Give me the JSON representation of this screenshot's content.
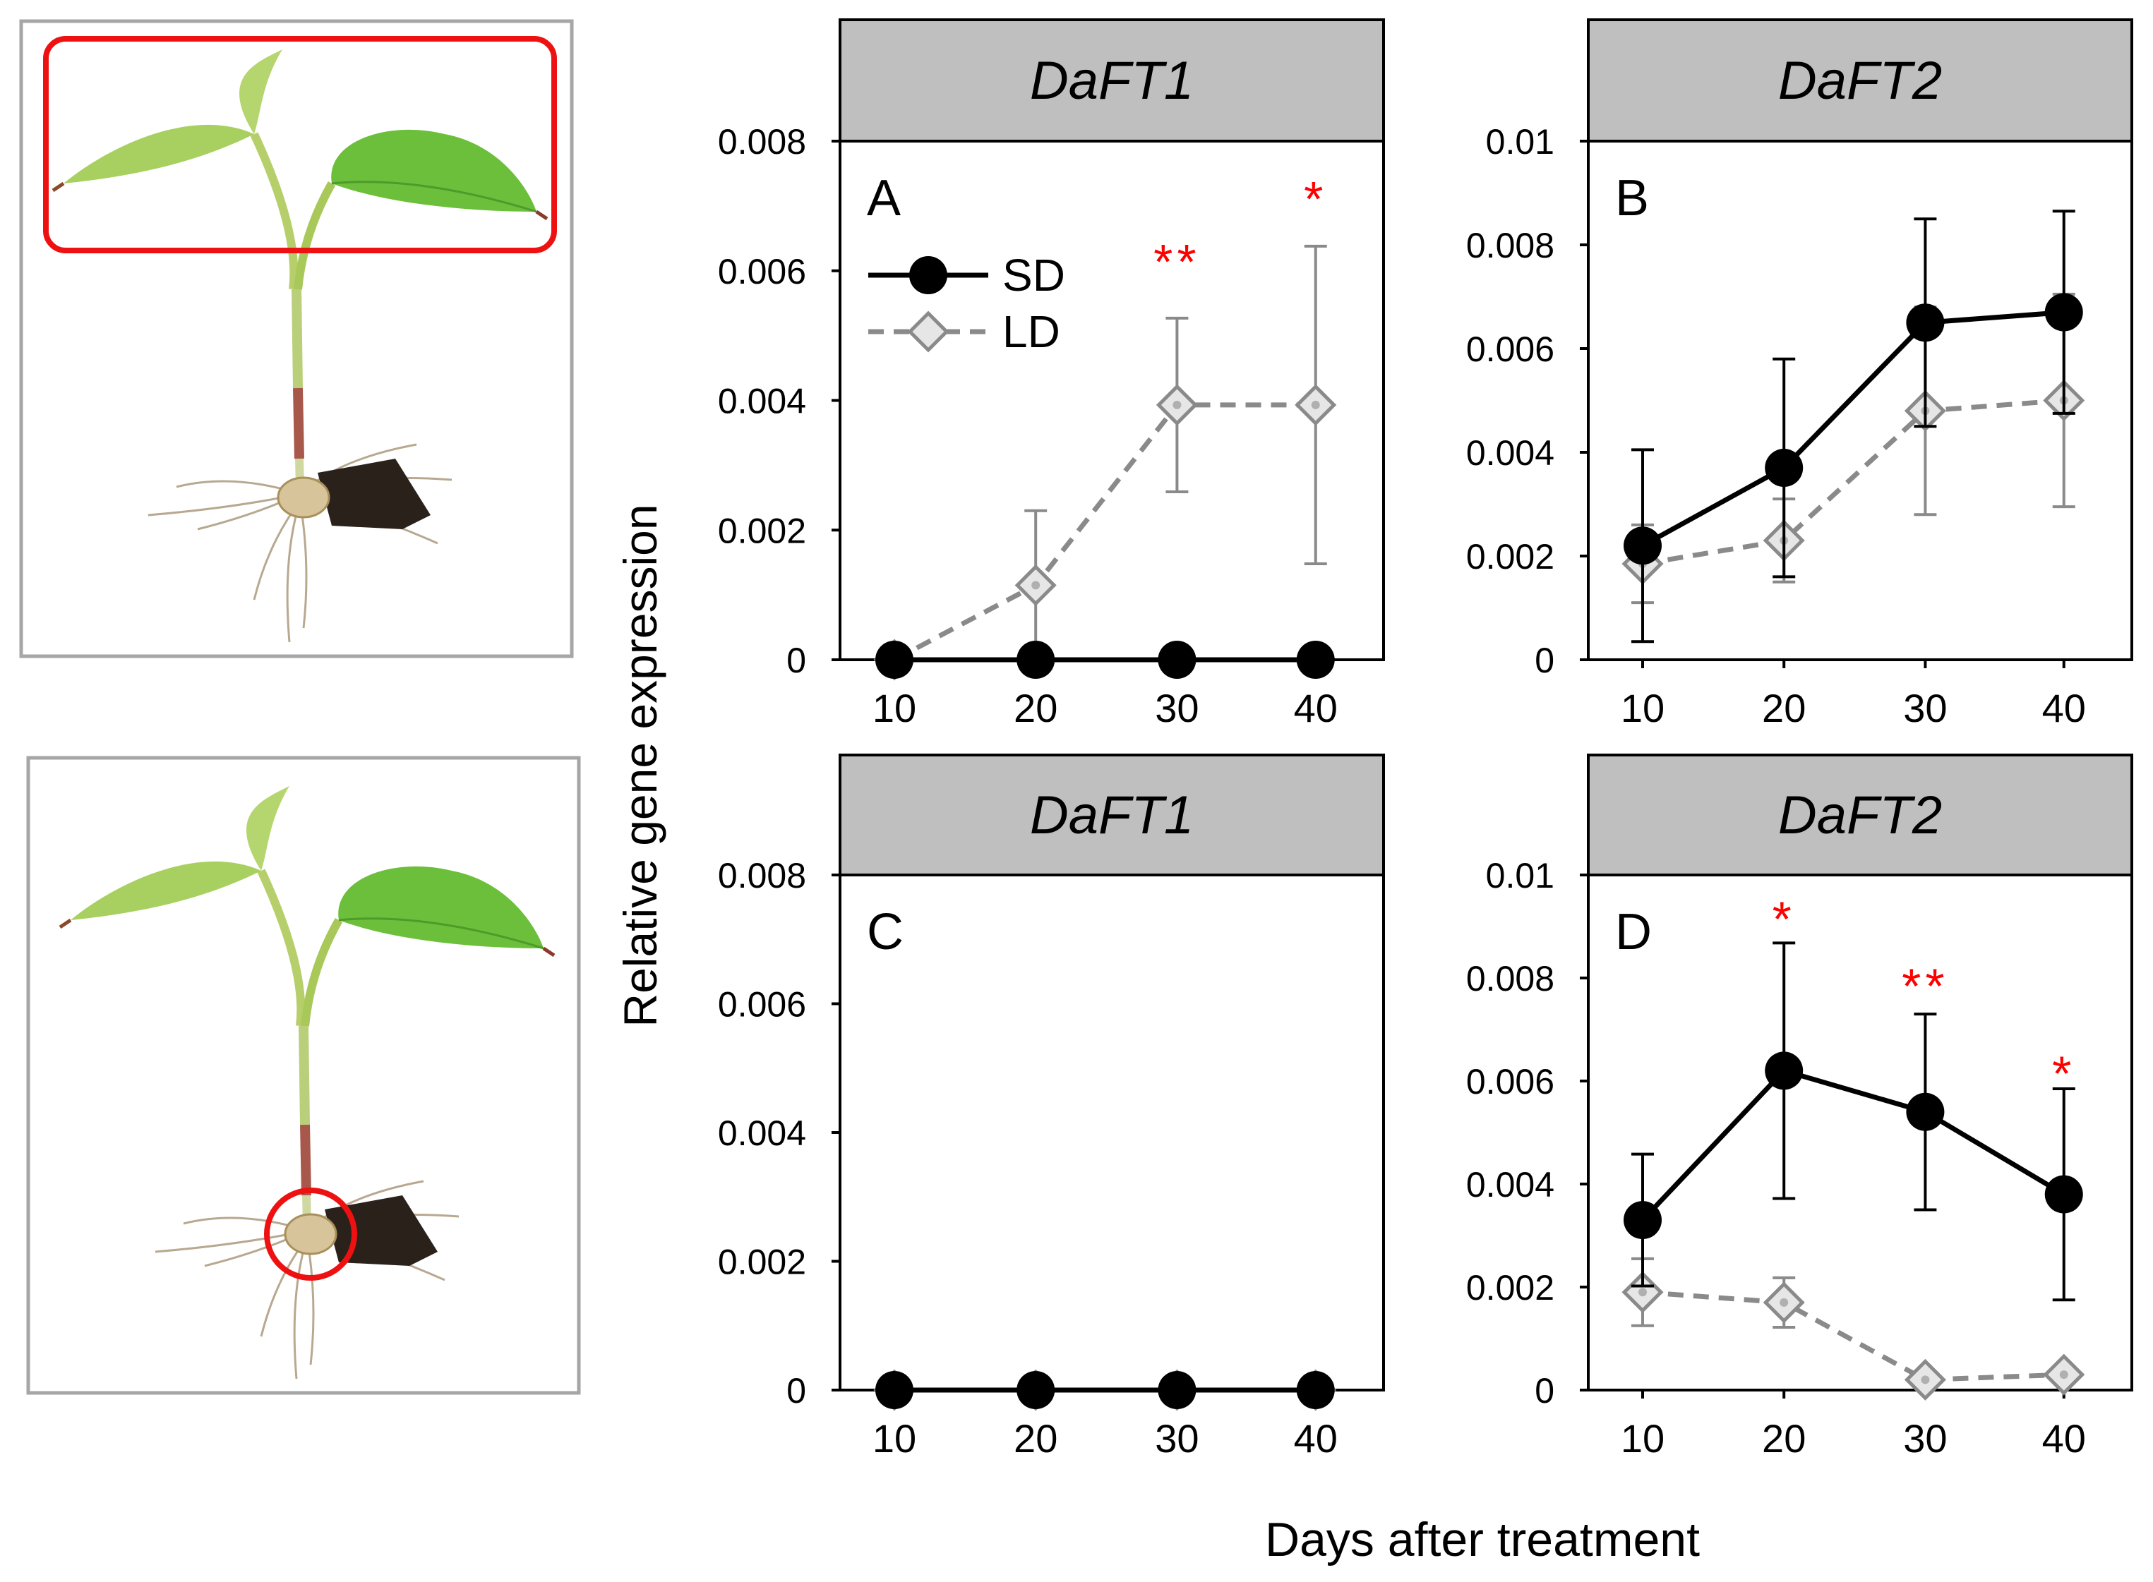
{
  "figure": {
    "ylabel": "Relative gene expression",
    "xlabel": "Days after treatment"
  },
  "colors": {
    "sd": "#000000",
    "ld": "#8a8a8a",
    "star": "#ff0000",
    "header_fill": "#bfbfbf",
    "highlight": "#ee1111"
  },
  "photos": [
    {
      "highlight": "leaves"
    },
    {
      "highlight": "tuber"
    }
  ],
  "legend": {
    "sd": "SD",
    "ld": "LD"
  },
  "chart_data": [
    {
      "type": "line",
      "panel": "A",
      "gene": "DaFT1",
      "x": [
        10,
        20,
        30,
        40
      ],
      "ylim": [
        0,
        0.008
      ],
      "yticks": [
        "0",
        "0.002",
        "0.004",
        "0.006",
        "0.008"
      ],
      "series": [
        {
          "name": "SD",
          "values": [
            0,
            0,
            0,
            0
          ],
          "err": [
            0,
            0,
            0,
            0
          ]
        },
        {
          "name": "LD",
          "values": [
            0,
            0.00115,
            0.00393,
            0.00393
          ],
          "err": [
            0,
            0.00115,
            0.00134,
            0.00245
          ]
        }
      ],
      "stars": [
        {
          "x": 30,
          "text": "**",
          "y": 0.00618
        },
        {
          "x": 40,
          "text": "*",
          "y": 0.00715
        }
      ]
    },
    {
      "type": "line",
      "panel": "B",
      "gene": "DaFT2",
      "x": [
        10,
        20,
        30,
        40
      ],
      "ylim": [
        0,
        0.01
      ],
      "yticks": [
        "0",
        "0.002",
        "0.004",
        "0.006",
        "0.008",
        "0.01"
      ],
      "series": [
        {
          "name": "SD",
          "values": [
            0.0022,
            0.0037,
            0.0065,
            0.0067
          ],
          "err": [
            0.00185,
            0.0021,
            0.002,
            0.00195
          ]
        },
        {
          "name": "LD",
          "values": [
            0.00185,
            0.0023,
            0.0048,
            0.005
          ],
          "err": [
            0.00075,
            0.0008,
            0.002,
            0.00205
          ]
        }
      ],
      "stars": []
    },
    {
      "type": "line",
      "panel": "C",
      "gene": "DaFT1",
      "x": [
        10,
        20,
        30,
        40
      ],
      "ylim": [
        0,
        0.008
      ],
      "yticks": [
        "0",
        "0.002",
        "0.004",
        "0.006",
        "0.008"
      ],
      "series": [
        {
          "name": "SD",
          "values": [
            0,
            0,
            0,
            0
          ],
          "err": [
            0,
            0,
            0,
            0
          ]
        },
        {
          "name": "LD",
          "values": [
            0,
            0,
            0,
            0
          ],
          "err": [
            0,
            0,
            0,
            0
          ]
        }
      ],
      "stars": []
    },
    {
      "type": "line",
      "panel": "D",
      "gene": "DaFT2",
      "x": [
        10,
        20,
        30,
        40
      ],
      "ylim": [
        0,
        0.01
      ],
      "yticks": [
        "0",
        "0.002",
        "0.004",
        "0.006",
        "0.008",
        "0.01"
      ],
      "series": [
        {
          "name": "SD",
          "values": [
            0.0033,
            0.0062,
            0.0054,
            0.0038
          ],
          "err": [
            0.00128,
            0.00248,
            0.0019,
            0.00205
          ]
        },
        {
          "name": "LD",
          "values": [
            0.0019,
            0.0017,
            0.0002,
            0.0003
          ],
          "err": [
            0.00065,
            0.00048,
            0,
            0
          ]
        }
      ],
      "stars": [
        {
          "x": 20,
          "text": "*",
          "y": 0.0092
        },
        {
          "x": 30,
          "text": "**",
          "y": 0.0079
        },
        {
          "x": 40,
          "text": "*",
          "y": 0.0062
        }
      ]
    }
  ]
}
